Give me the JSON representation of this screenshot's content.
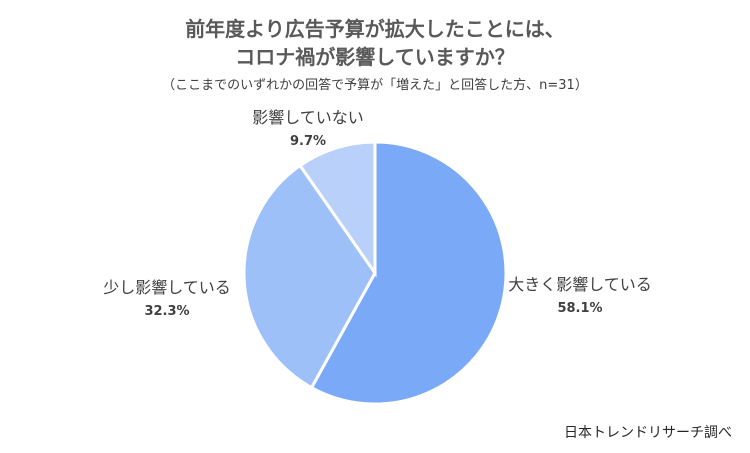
{
  "title_line1": "前年度より広告予算が拡大したことには、",
  "title_line2": "コロナ禍が影響していますか？",
  "subtitle": "（ここまでのいずれかの回答で予算が「増えた」と回答した方、n=31）",
  "credit": "日本トレンドリサーチ調べ",
  "chart_data": {
    "type": "pie",
    "slices": [
      {
        "label": "大きく影響している",
        "value": 58.1,
        "value_label": "58.1%",
        "color": "#7aa9f7"
      },
      {
        "label": "少し影響している",
        "value": 32.3,
        "value_label": "32.3%",
        "color": "#9ec0f8"
      },
      {
        "label": "影響していない",
        "value": 9.7,
        "value_label": "9.7%",
        "color": "#b9d1fa"
      }
    ]
  }
}
